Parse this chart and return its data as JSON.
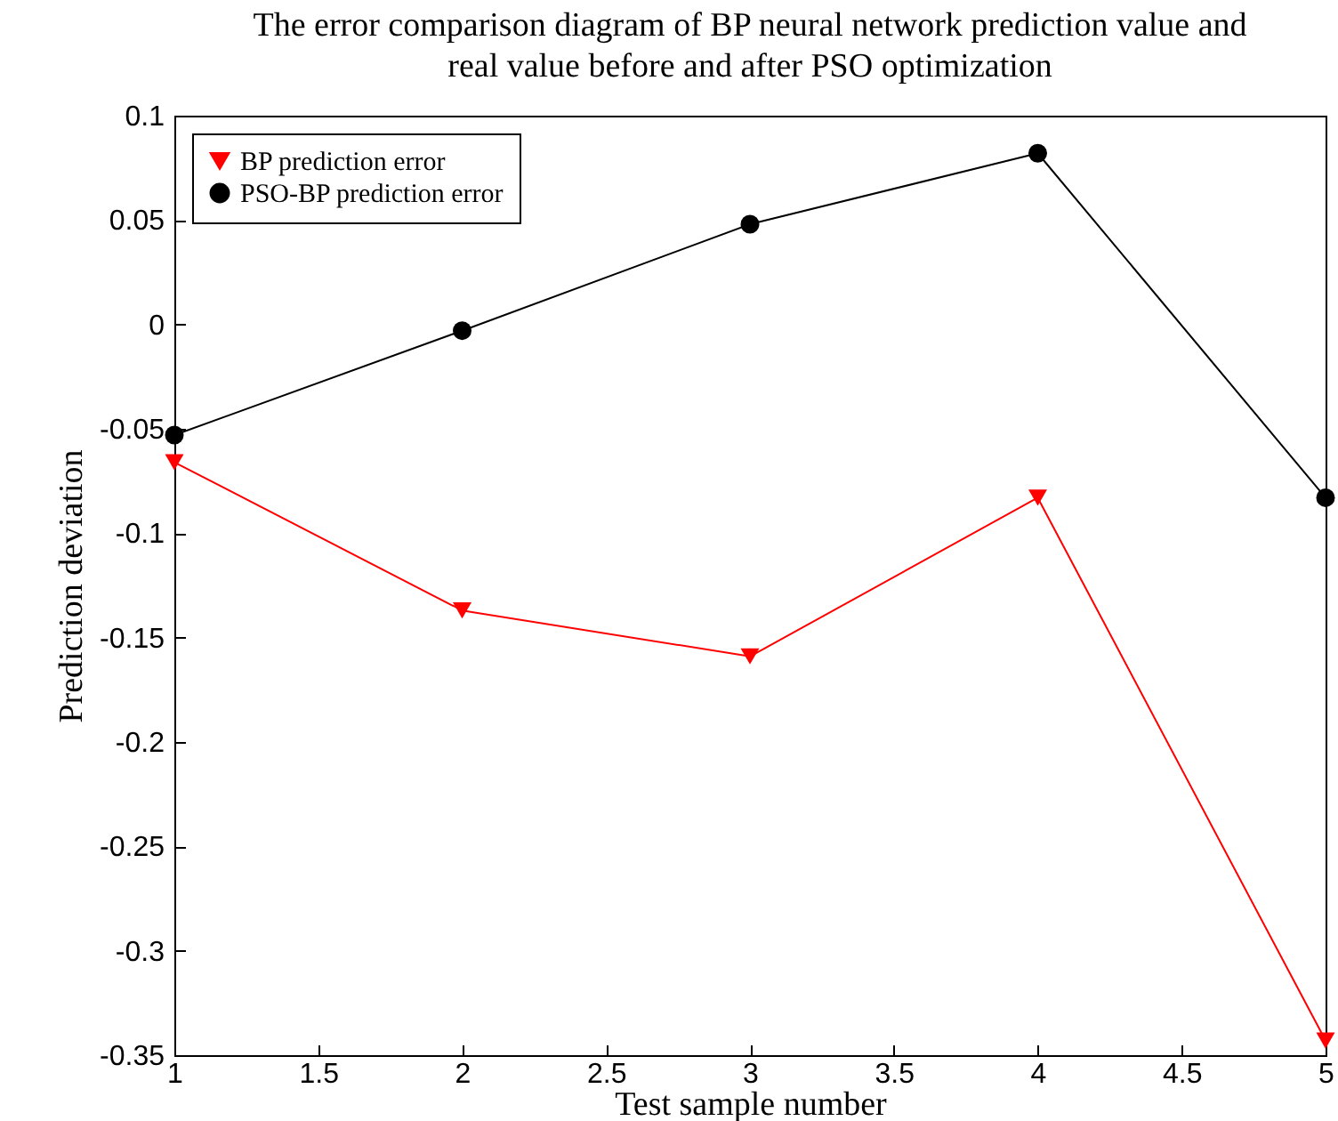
{
  "chart_data": {
    "type": "line",
    "title": "The error comparison diagram of BP neural network prediction value and real value before and after PSO optimization",
    "xlabel": "Test sample number",
    "ylabel": "Prediction deviation",
    "x": [
      1,
      2,
      3,
      4,
      5
    ],
    "series": [
      {
        "name": "BP prediction error",
        "color": "#ff0000",
        "marker": "triangle",
        "values": [
          -0.066,
          -0.137,
          -0.159,
          -0.083,
          -0.343
        ]
      },
      {
        "name": "PSO-BP prediction error",
        "color": "#000000",
        "marker": "circle",
        "values": [
          -0.053,
          -0.003,
          0.048,
          0.082,
          -0.083
        ]
      }
    ],
    "xlim": [
      1,
      5
    ],
    "xticks": [
      1,
      1.5,
      2,
      2.5,
      3,
      3.5,
      4,
      4.5,
      5
    ],
    "ylim": [
      -0.35,
      0.1
    ],
    "yticks": [
      -0.35,
      -0.3,
      -0.25,
      -0.2,
      -0.15,
      -0.1,
      -0.05,
      0,
      0.05,
      0.1
    ],
    "grid": false,
    "legend": "top left",
    "line_style": "solid"
  }
}
